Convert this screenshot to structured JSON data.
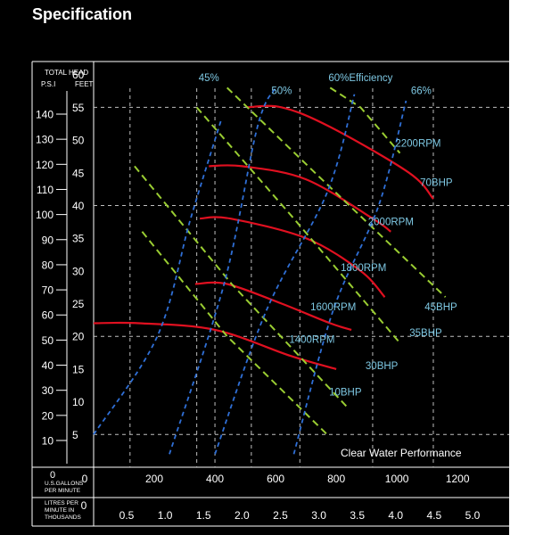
{
  "section_heading": "Specification",
  "colors": {
    "background": "#000000",
    "text": "#ffffff",
    "grid": "#bfbfbf",
    "rpm_curve": "#e01020",
    "bhp_line": "#9acd32",
    "efficiency_line": "#2f6fd6",
    "label_cyan": "#7ec8e3"
  },
  "chart_data": {
    "type": "line",
    "title": "Clear Water Performance",
    "ylabel_header": "TOTAL HEAD",
    "ylabel_psi": "P.S.I",
    "ylabel_feet": "FEET",
    "psi_ticks": [
      "140",
      "130",
      "120",
      "110",
      "100",
      "90",
      "80",
      "70",
      "60",
      "50",
      "40",
      "30",
      "20",
      "10"
    ],
    "psi_values": [
      140,
      130,
      120,
      110,
      100,
      90,
      80,
      70,
      60,
      50,
      40,
      30,
      20,
      10
    ],
    "feet_ticks": [
      "60",
      "55",
      "50",
      "45",
      "40",
      "35",
      "30",
      "25",
      "20",
      "15",
      "10",
      "5"
    ],
    "feet_values": [
      60,
      55,
      50,
      45,
      40,
      35,
      30,
      25,
      20,
      15,
      10,
      5
    ],
    "gpm_label": "U.S.GALLONS PER MINUTE",
    "gpm_ticks": [
      "0",
      "200",
      "400",
      "600",
      "800",
      "1000",
      "1200"
    ],
    "gpm_values": [
      0,
      200,
      400,
      600,
      800,
      1000,
      1200
    ],
    "lpm_label": "LITRES PER MINUTE IN THOUSANDS",
    "lpm_ticks": [
      "0",
      "0.5",
      "1.0",
      "1.5",
      "2.0",
      "2.5",
      "3.0",
      "3.5",
      "4.0",
      "4.5",
      "5.0"
    ],
    "lpm_values": [
      0,
      0.5,
      1.0,
      1.5,
      2.0,
      2.5,
      3.0,
      3.5,
      4.0,
      4.5,
      5.0
    ],
    "xlim_gpm": [
      0,
      1370
    ],
    "ylim_feet": [
      0,
      62
    ],
    "grid_feet": [
      5,
      20,
      40,
      55
    ],
    "grid_gpm": [
      120,
      340,
      400,
      520,
      680,
      920,
      1120
    ],
    "series": [
      {
        "name": "2200RPM",
        "kind": "rpm",
        "points": [
          [
            505,
            55
          ],
          [
            620,
            55
          ],
          [
            780,
            52
          ],
          [
            1040,
            45
          ],
          [
            1120,
            41
          ]
        ]
      },
      {
        "name": "2000RPM",
        "kind": "rpm",
        "points": [
          [
            380,
            46
          ],
          [
            490,
            46
          ],
          [
            700,
            44
          ],
          [
            920,
            38
          ],
          [
            980,
            36
          ]
        ]
      },
      {
        "name": "1800RPM",
        "kind": "rpm",
        "points": [
          [
            350,
            38
          ],
          [
            450,
            38
          ],
          [
            700,
            35
          ],
          [
            880,
            30
          ],
          [
            960,
            26
          ]
        ]
      },
      {
        "name": "1600RPM",
        "kind": "rpm",
        "points": [
          [
            335,
            28
          ],
          [
            440,
            28
          ],
          [
            620,
            25
          ],
          [
            780,
            22
          ],
          [
            850,
            21
          ]
        ]
      },
      {
        "name": "1400RPM",
        "kind": "rpm",
        "points": [
          [
            0,
            22
          ],
          [
            150,
            22
          ],
          [
            400,
            21
          ],
          [
            650,
            17
          ],
          [
            800,
            15
          ]
        ]
      },
      {
        "name": "10BHP",
        "kind": "bhp",
        "points": [
          [
            160,
            36
          ],
          [
            440,
            20
          ],
          [
            770,
            5
          ]
        ]
      },
      {
        "name": "30BHP",
        "kind": "bhp",
        "points": [
          [
            135,
            46
          ],
          [
            455,
            28
          ],
          [
            840,
            9
          ]
        ]
      },
      {
        "name": "35BHP",
        "kind": "bhp",
        "points": [
          [
            340,
            55
          ],
          [
            660,
            38
          ],
          [
            1010,
            19
          ]
        ]
      },
      {
        "name": "45BHP",
        "kind": "bhp",
        "points": [
          [
            440,
            58
          ],
          [
            730,
            45
          ],
          [
            1160,
            26
          ]
        ]
      },
      {
        "name": "70BHP",
        "kind": "bhp",
        "points": [
          [
            780,
            58
          ],
          [
            880,
            55
          ],
          [
            1010,
            48
          ]
        ]
      },
      {
        "name": "45%",
        "kind": "efficiency",
        "points": [
          [
            0,
            5
          ],
          [
            210,
            20
          ],
          [
            320,
            38
          ],
          [
            420,
            53
          ]
        ]
      },
      {
        "name": "50%",
        "kind": "efficiency",
        "points": [
          [
            250,
            2
          ],
          [
            430,
            28
          ],
          [
            540,
            52
          ],
          [
            600,
            58
          ]
        ]
      },
      {
        "name": "60%Efficiency",
        "kind": "efficiency",
        "points": [
          [
            400,
            2
          ],
          [
            570,
            24
          ],
          [
            770,
            42
          ],
          [
            860,
            57
          ]
        ]
      },
      {
        "name": "66%",
        "kind": "efficiency",
        "points": [
          [
            660,
            2
          ],
          [
            790,
            24
          ],
          [
            940,
            40
          ],
          [
            1030,
            56
          ]
        ]
      }
    ],
    "annotations": [
      {
        "text": "45%",
        "at": [
          380,
          59
        ]
      },
      {
        "text": "50%",
        "at": [
          620,
          57
        ]
      },
      {
        "text": "60%Efficiency",
        "at": [
          880,
          59
        ]
      },
      {
        "text": "66%",
        "at": [
          1080,
          57
        ]
      },
      {
        "text": "2200RPM",
        "at": [
          1070,
          49
        ]
      },
      {
        "text": "70BHP",
        "at": [
          1130,
          43
        ]
      },
      {
        "text": "2000RPM",
        "at": [
          980,
          37
        ]
      },
      {
        "text": "1800RPM",
        "at": [
          890,
          30
        ]
      },
      {
        "text": "45BHP",
        "at": [
          1145,
          24
        ]
      },
      {
        "text": "1600RPM",
        "at": [
          790,
          24
        ]
      },
      {
        "text": "35BHP",
        "at": [
          1095,
          20
        ]
      },
      {
        "text": "1400RPM",
        "at": [
          720,
          19
        ]
      },
      {
        "text": "30BHP",
        "at": [
          950,
          15
        ]
      },
      {
        "text": "10BHP",
        "at": [
          830,
          11
        ]
      }
    ]
  }
}
